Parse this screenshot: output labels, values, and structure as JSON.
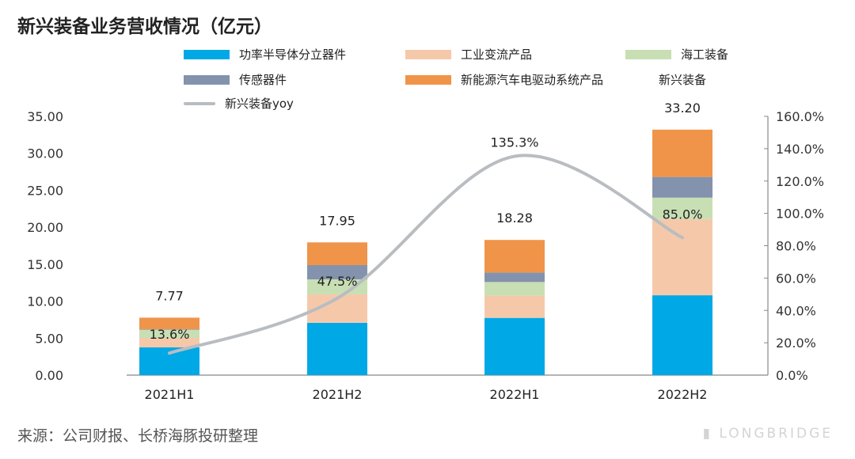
{
  "title": "新兴装备业务营收情况（亿元）",
  "source": "来源：公司财报、长桥海豚投研整理",
  "logo": "LONGBRIDGE",
  "chart_data": {
    "type": "bar",
    "stacked": true,
    "title": "新兴装备业务营收情况（亿元）",
    "categories": [
      "2021H1",
      "2021H2",
      "2022H1",
      "2022H2"
    ],
    "series": [
      {
        "name": "功率半导体分立器件",
        "color": "#00a8e6",
        "values": [
          3.75,
          7.07,
          7.74,
          10.8
        ]
      },
      {
        "name": "工业变流产品",
        "color": "#f6c8aa",
        "values": [
          1.28,
          3.85,
          3.03,
          10.3
        ]
      },
      {
        "name": "海工装备",
        "color": "#c8dfb4",
        "values": [
          1.1,
          2.03,
          1.82,
          2.9
        ]
      },
      {
        "name": "传感器件",
        "color": "#8393ad",
        "values": [
          0.07,
          1.93,
          1.28,
          2.8
        ]
      },
      {
        "name": "新能源汽车电驱动系统产品",
        "color": "#f0944a",
        "values": [
          1.57,
          3.07,
          4.41,
          6.4
        ]
      }
    ],
    "totals": {
      "name": "新兴装备",
      "values": [
        7.77,
        17.95,
        18.28,
        33.2
      ],
      "labels": [
        "7.77",
        "17.95",
        "18.28",
        "33.20"
      ]
    },
    "line": {
      "name": "新兴装备yoy",
      "color": "#b9bdc1",
      "values": [
        13.6,
        47.5,
        135.3,
        85.0
      ],
      "labels": [
        "13.6%",
        "47.5%",
        "135.3%",
        "85.0%"
      ],
      "axis": "right"
    },
    "yleft": {
      "ylim": [
        0,
        35
      ],
      "ticks": [
        "0.00",
        "5.00",
        "10.00",
        "15.00",
        "20.00",
        "25.00",
        "30.00",
        "35.00"
      ]
    },
    "yright": {
      "ylim": [
        0,
        160
      ],
      "ticks": [
        "0.0%",
        "20.0%",
        "40.0%",
        "60.0%",
        "80.0%",
        "100.0%",
        "120.0%",
        "140.0%",
        "160.0%"
      ]
    },
    "legend_position": "top"
  }
}
